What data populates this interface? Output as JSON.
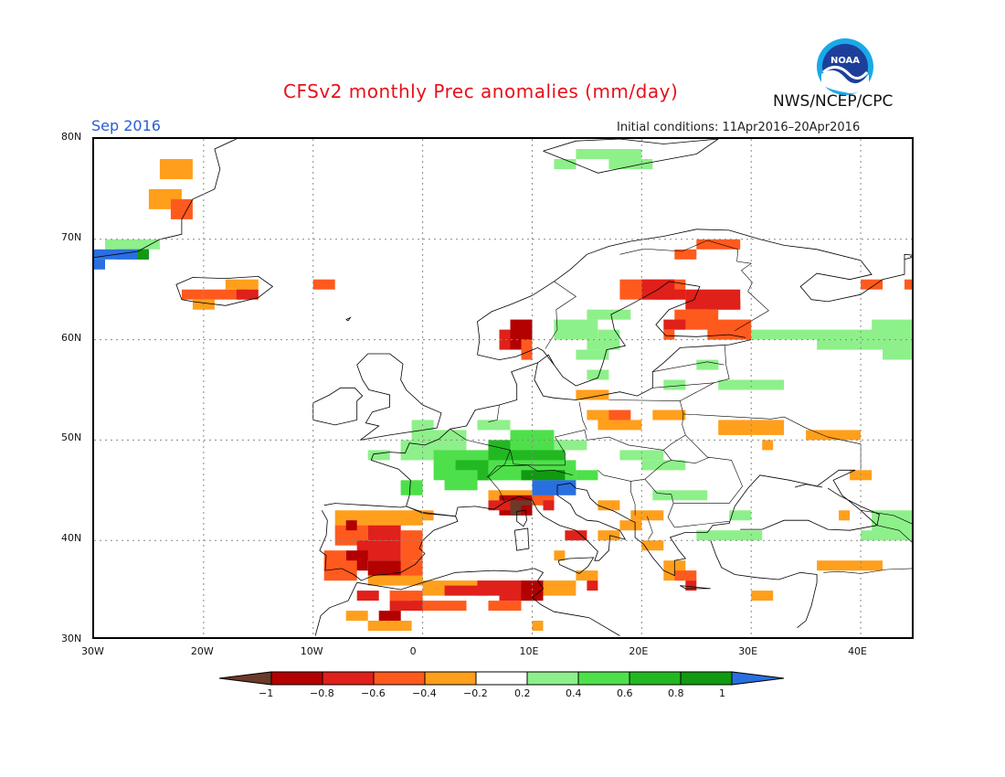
{
  "header": {
    "title": "CFSv2 monthly Prec anomalies (mm/day)",
    "month": "Sep 2016",
    "initial_conditions": "Initial conditions: 11Apr2016–20Apr2016",
    "agency": "NWS/NCEP/CPC",
    "logo_text": "NOAA"
  },
  "map": {
    "lon_range": [
      -30,
      45
    ],
    "lat_range": [
      30,
      80
    ],
    "lat_labels": [
      "80N",
      "70N",
      "60N",
      "50N",
      "40N",
      "30N"
    ],
    "lon_labels": [
      "30W",
      "20W",
      "10W",
      "0",
      "10E",
      "20E",
      "30E",
      "40E"
    ],
    "gridlines": "dotted"
  },
  "colorbar": {
    "colors": [
      "#6b3a2a",
      "#b30000",
      "#e0201a",
      "#ff5a1e",
      "#ff9f1c",
      "#ffffff",
      "#8ef08a",
      "#4ee04a",
      "#22b822",
      "#119a11",
      "#2a6fe0"
    ],
    "tick_labels": [
      "−1",
      "−0.8",
      "−0.6",
      "−0.4",
      "−0.2",
      "0.2",
      "0.4",
      "0.6",
      "0.8",
      "1"
    ]
  }
}
